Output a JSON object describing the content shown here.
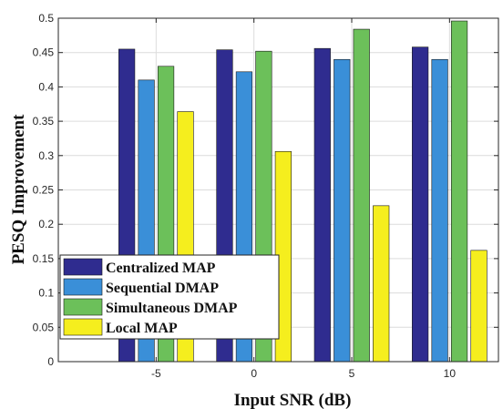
{
  "chart_data": {
    "type": "bar",
    "categories": [
      "-5",
      "0",
      "5",
      "10"
    ],
    "series": [
      {
        "name": "Centralized MAP",
        "values": [
          0.455,
          0.454,
          0.456,
          0.458
        ],
        "color": "#2f2c8f"
      },
      {
        "name": "Sequential DMAP",
        "values": [
          0.41,
          0.422,
          0.44,
          0.44
        ],
        "color": "#3a8fd8"
      },
      {
        "name": "Simultaneous DMAP",
        "values": [
          0.43,
          0.452,
          0.484,
          0.496
        ],
        "color": "#6cc05a"
      },
      {
        "name": "Local MAP",
        "values": [
          0.364,
          0.306,
          0.227,
          0.162
        ],
        "color": "#f5ee1e"
      }
    ],
    "xlabel": "Input SNR (dB)",
    "ylabel": "PESQ Improvement",
    "xlim": [
      -10,
      12.5
    ],
    "ylim": [
      0,
      0.5
    ],
    "yticks": [
      0,
      0.05,
      0.1,
      0.15,
      0.2,
      0.25,
      0.3,
      0.35,
      0.4,
      0.45,
      0.5
    ],
    "ytick_labels": [
      "0",
      "0.05",
      "0.1",
      "0.15",
      "0.2",
      "0.25",
      "0.3",
      "0.35",
      "0.4",
      "0.45",
      "0.5"
    ],
    "grid": true,
    "legend_position": "bottom-left"
  }
}
